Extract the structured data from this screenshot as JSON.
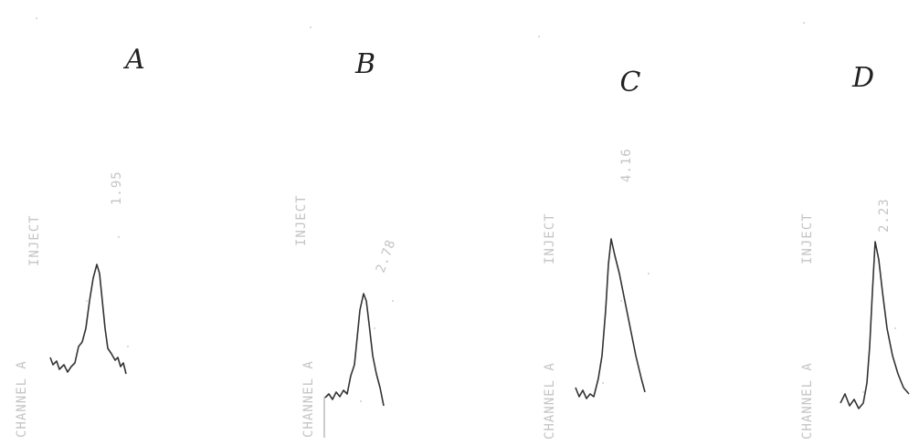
{
  "panels": [
    {
      "label": "A",
      "channel": "CHANNEL A",
      "inject": "INJECT",
      "peak_time": "1.95"
    },
    {
      "label": "B",
      "channel": "CHANNEL A",
      "inject": "INJECT",
      "peak_time": "2.78"
    },
    {
      "label": "C",
      "channel": "CHANNEL A",
      "inject": "INJECT",
      "peak_time": "4.16"
    },
    {
      "label": "D",
      "channel": "CHANNEL A",
      "inject": "INJECT",
      "peak_time": "2.23"
    }
  ]
}
